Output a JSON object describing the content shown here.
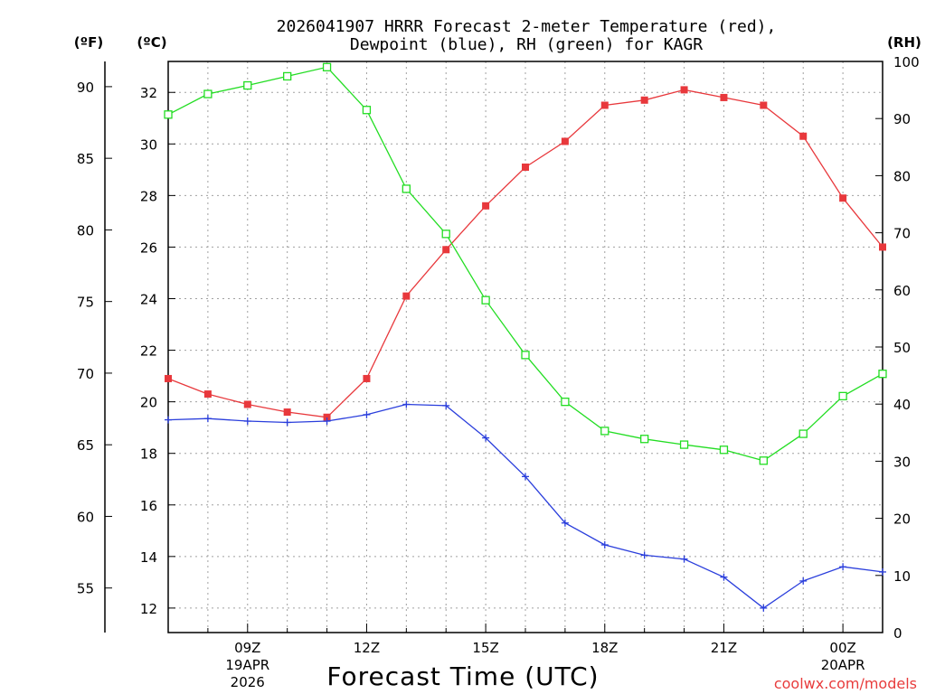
{
  "chart_data": {
    "type": "line",
    "title_line1": "2026041907 HRRR Forecast 2-meter Temperature (red),",
    "title_line2": "Dewpoint (blue), RH (green) for KAGR",
    "xlabel": "Forecast Time (UTC)",
    "credit": "coolwx.com/models",
    "units": {
      "fahrenheit": "(ºF)",
      "celsius": "(ºC)",
      "rh": "(RH)"
    },
    "x_hours_utc": [
      7,
      8,
      9,
      10,
      11,
      12,
      13,
      14,
      15,
      16,
      17,
      18,
      19,
      20,
      21,
      22,
      23,
      24,
      25
    ],
    "xlim": [
      7,
      25
    ],
    "x_ticks": [
      {
        "hour": 9,
        "label": "09Z",
        "sub1": "19APR",
        "sub2": "2026"
      },
      {
        "hour": 12,
        "label": "12Z"
      },
      {
        "hour": 15,
        "label": "15Z"
      },
      {
        "hour": 18,
        "label": "18Z"
      },
      {
        "hour": 21,
        "label": "21Z"
      },
      {
        "hour": 24,
        "label": "00Z",
        "sub1": "20APR"
      }
    ],
    "celsius_axis": {
      "ylim": [
        11.05,
        33.2
      ],
      "ticks": [
        12,
        14,
        16,
        18,
        20,
        22,
        24,
        26,
        28,
        30,
        32
      ]
    },
    "fahrenheit_axis": {
      "ticks": [
        55,
        60,
        65,
        70,
        75,
        80,
        85,
        90
      ]
    },
    "rh_axis": {
      "ylim": [
        0,
        100
      ],
      "ticks": [
        0,
        10,
        20,
        30,
        40,
        50,
        60,
        70,
        80,
        90,
        100
      ]
    },
    "series": [
      {
        "name": "2-meter Temperature",
        "units": "C",
        "color": "#e8383c",
        "marker": "filled-square",
        "values": [
          20.9,
          20.3,
          19.9,
          19.6,
          19.4,
          20.9,
          24.1,
          25.9,
          27.6,
          29.1,
          30.1,
          31.5,
          31.7,
          32.1,
          31.8,
          31.5,
          30.3,
          27.9,
          26.0
        ]
      },
      {
        "name": "Dewpoint",
        "units": "C",
        "color": "#2a3edc",
        "marker": "plus",
        "values": [
          19.3,
          19.35,
          19.25,
          19.2,
          19.25,
          19.5,
          19.9,
          19.85,
          18.6,
          17.1,
          15.3,
          14.45,
          14.05,
          13.9,
          13.2,
          12.0,
          13.05,
          13.6,
          13.4
        ]
      },
      {
        "name": "RH",
        "units": "%",
        "color": "#22dd22",
        "marker": "open-square",
        "values": [
          90.7,
          94.3,
          95.8,
          97.4,
          99.0,
          91.5,
          77.7,
          69.8,
          58.2,
          48.6,
          40.4,
          35.3,
          33.9,
          32.9,
          32.0,
          30.1,
          34.8,
          41.4,
          45.3
        ]
      }
    ]
  }
}
